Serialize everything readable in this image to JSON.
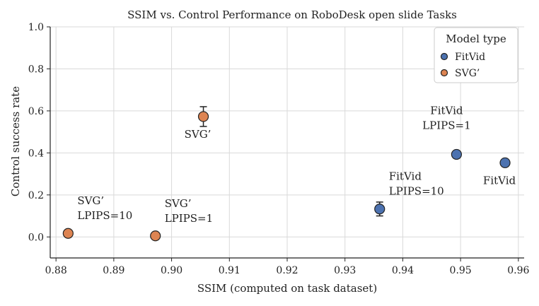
{
  "chart_data": {
    "type": "scatter",
    "title": "SSIM vs. Control Performance on RoboDesk open slide Tasks",
    "xlabel": "SSIM (computed on task dataset)",
    "ylabel": "Control success rate",
    "xlim": [
      0.879,
      0.961
    ],
    "ylim": [
      -0.1,
      1.0
    ],
    "xticks": [
      0.88,
      0.89,
      0.9,
      0.91,
      0.92,
      0.93,
      0.94,
      0.95,
      0.96
    ],
    "xtick_labels": [
      "0.88",
      "0.89",
      "0.90",
      "0.91",
      "0.92",
      "0.93",
      "0.94",
      "0.95",
      "0.96"
    ],
    "yticks": [
      0.0,
      0.2,
      0.4,
      0.6,
      0.8,
      1.0
    ],
    "ytick_labels": [
      "0.0",
      "0.2",
      "0.4",
      "0.6",
      "0.8",
      "1.0"
    ],
    "grid": true,
    "legend": {
      "title": "Model type",
      "placement": "top-right",
      "entries": [
        {
          "name": "FitVid",
          "color": "#4c72b0"
        },
        {
          "name": "SVG’",
          "color": "#dd8452"
        }
      ]
    },
    "series": [
      {
        "name": "FitVid",
        "color": "#4c72b0",
        "points": [
          {
            "x": 0.936,
            "y": 0.133,
            "err": 0.033,
            "label_lines": [
              "FitVid",
              "LPIPS=10"
            ],
            "label_anchor": "upper-right"
          },
          {
            "x": 0.9493,
            "y": 0.393,
            "err": 0.017,
            "label_lines": [
              "FitVid",
              "LPIPS=1"
            ],
            "label_anchor": "above"
          },
          {
            "x": 0.9577,
            "y": 0.353,
            "err": 0.017,
            "label_lines": [
              "FitVid"
            ],
            "label_anchor": "below"
          }
        ]
      },
      {
        "name": "SVG’",
        "color": "#dd8452",
        "points": [
          {
            "x": 0.9055,
            "y": 0.573,
            "err": 0.047,
            "label_lines": [
              "SVG’"
            ],
            "label_anchor": "below"
          },
          {
            "x": 0.8821,
            "y": 0.017,
            "err": 0.0,
            "label_lines": [
              "SVG’",
              "LPIPS=10"
            ],
            "label_anchor": "upper-right"
          },
          {
            "x": 0.8972,
            "y": 0.005,
            "err": 0.0,
            "label_lines": [
              "SVG’",
              "LPIPS=1"
            ],
            "label_anchor": "upper-right"
          }
        ]
      }
    ]
  }
}
